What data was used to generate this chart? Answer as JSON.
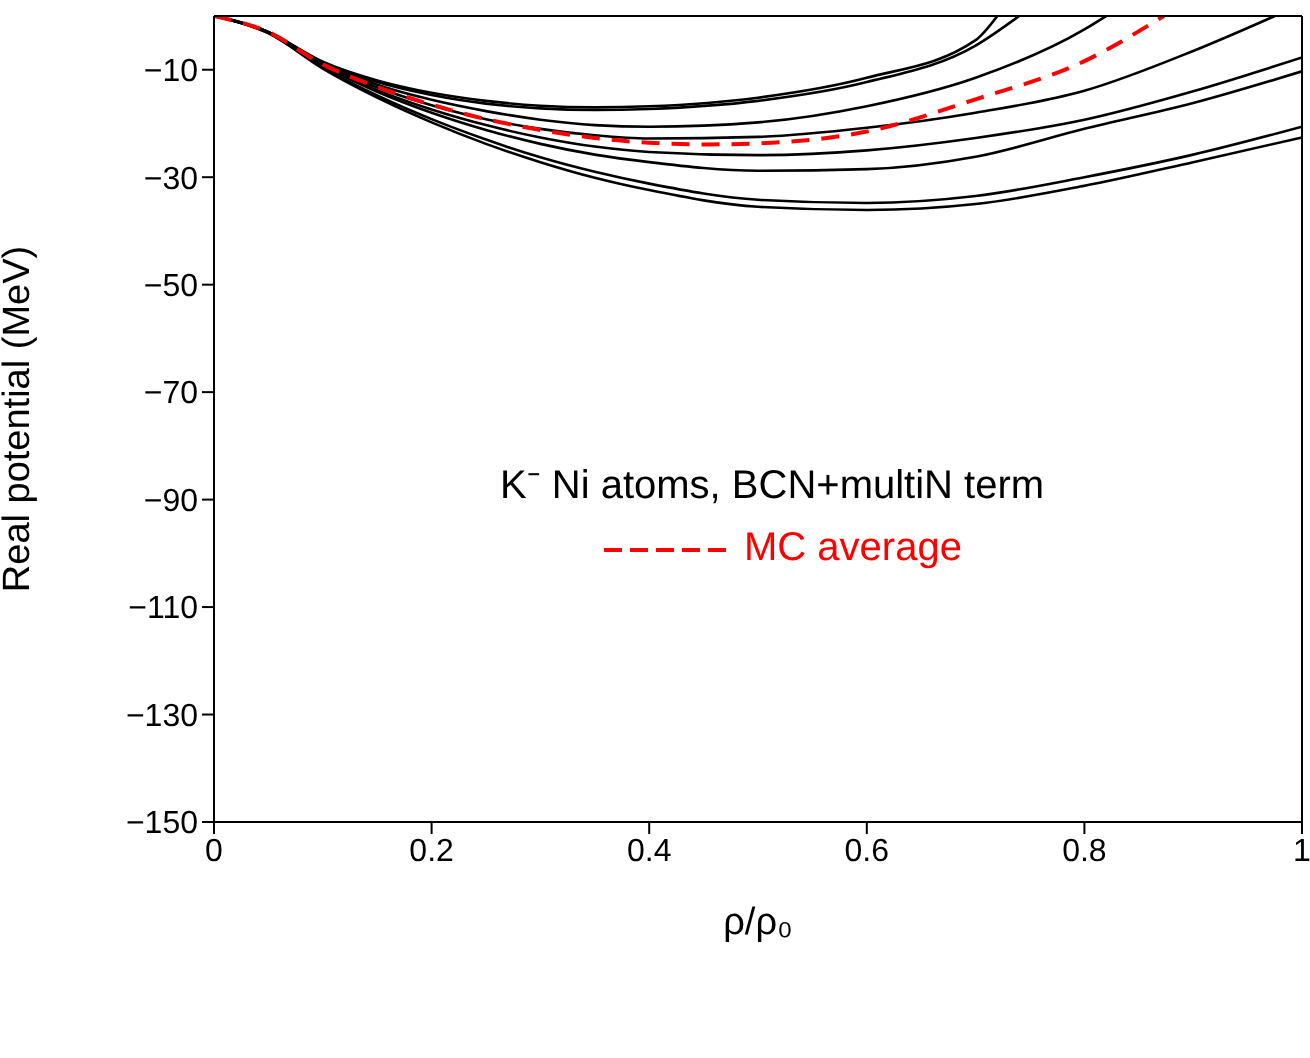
{
  "chart_data": {
    "type": "line",
    "xlabel": "ρ/ρ₀",
    "ylabel": "Real potential (MeV)",
    "legend_title": "K⁻ Ni atoms, BCN+multiN term",
    "legend": "right",
    "xlim": [
      0,
      1
    ],
    "xticks": [
      0,
      0.2,
      0.4,
      0.6,
      0.8,
      1
    ],
    "ylim": [
      -150,
      0
    ],
    "yticks": [
      -150,
      -130,
      -110,
      -90,
      -70,
      -50,
      -30,
      -10
    ],
    "marker": "none",
    "series": [
      {
        "color": "#000000",
        "line_style": "solid",
        "x": [
          0,
          0.05,
          0.1,
          0.15,
          0.2,
          0.25,
          0.3,
          0.35,
          0.4,
          0.5,
          0.6,
          0.7,
          0.72
        ],
        "values": [
          0,
          -3,
          -8.5,
          -12,
          -14.3,
          -15.8,
          -16.7,
          -17,
          -16.8,
          -15.2,
          -11.5,
          -4.5,
          0
        ]
      },
      {
        "color": "#000000",
        "line_style": "solid",
        "x": [
          0,
          0.05,
          0.1,
          0.15,
          0.2,
          0.25,
          0.3,
          0.35,
          0.4,
          0.5,
          0.6,
          0.7,
          0.74
        ],
        "values": [
          0,
          -3,
          -8.7,
          -12.3,
          -14.7,
          -16.3,
          -17.2,
          -17.5,
          -17.3,
          -15.8,
          -12.3,
          -5.5,
          0
        ]
      },
      {
        "color": "#000000",
        "line_style": "solid",
        "x": [
          0,
          0.05,
          0.1,
          0.15,
          0.2,
          0.25,
          0.3,
          0.35,
          0.4,
          0.5,
          0.6,
          0.7,
          0.8,
          0.82
        ],
        "values": [
          0,
          -3,
          -8.8,
          -12.8,
          -15.6,
          -17.7,
          -19.3,
          -20.3,
          -20.6,
          -19.8,
          -16.8,
          -11.5,
          -2.5,
          0
        ]
      },
      {
        "color": "#000000",
        "line_style": "solid",
        "x": [
          0,
          0.05,
          0.1,
          0.15,
          0.2,
          0.25,
          0.3,
          0.35,
          0.4,
          0.5,
          0.6,
          0.7,
          0.8,
          0.9,
          0.975
        ],
        "values": [
          0,
          -3,
          -9,
          -13.3,
          -16.6,
          -19.2,
          -21,
          -22.2,
          -22.8,
          -22.5,
          -20.8,
          -18,
          -13.9,
          -6.5,
          0
        ]
      },
      {
        "color": "#000000",
        "line_style": "solid",
        "x": [
          0,
          0.05,
          0.1,
          0.15,
          0.2,
          0.25,
          0.3,
          0.35,
          0.4,
          0.5,
          0.6,
          0.7,
          0.8,
          0.9,
          1
        ],
        "values": [
          0,
          -3,
          -9.2,
          -13.8,
          -17.4,
          -20.3,
          -22.6,
          -24.3,
          -25.3,
          -25.9,
          -25,
          -22.7,
          -19.3,
          -14,
          -7.7
        ]
      },
      {
        "color": "#000000",
        "line_style": "solid",
        "x": [
          0,
          0.05,
          0.1,
          0.15,
          0.2,
          0.25,
          0.3,
          0.35,
          0.4,
          0.5,
          0.6,
          0.7,
          0.8,
          0.9,
          1
        ],
        "values": [
          0,
          -3,
          -9.3,
          -14.1,
          -18,
          -21.2,
          -23.8,
          -25.8,
          -27.2,
          -28.8,
          -28.5,
          -26.2,
          -21,
          -16.2,
          -10.3
        ]
      },
      {
        "color": "#000000",
        "line_style": "solid",
        "x": [
          0,
          0.05,
          0.1,
          0.15,
          0.2,
          0.25,
          0.3,
          0.35,
          0.4,
          0.5,
          0.6,
          0.7,
          0.8,
          0.9,
          1
        ],
        "values": [
          0,
          -3.2,
          -9.6,
          -14.8,
          -19.2,
          -23,
          -26.3,
          -29,
          -31.2,
          -34.2,
          -34.8,
          -33.5,
          -30,
          -25.8,
          -20.6
        ]
      },
      {
        "color": "#000000",
        "line_style": "solid",
        "x": [
          0,
          0.05,
          0.1,
          0.15,
          0.2,
          0.25,
          0.3,
          0.35,
          0.4,
          0.5,
          0.6,
          0.7,
          0.8,
          0.9,
          1
        ],
        "values": [
          0,
          -3.2,
          -9.8,
          -15.2,
          -19.8,
          -23.8,
          -27.2,
          -30.1,
          -32.4,
          -35.5,
          -36.1,
          -35,
          -31.6,
          -27.2,
          -22.6
        ]
      },
      {
        "name": "MC average",
        "color": "#ff0000",
        "line_style": "dashed",
        "x": [
          0,
          0.05,
          0.1,
          0.15,
          0.2,
          0.25,
          0.3,
          0.35,
          0.4,
          0.45,
          0.5,
          0.6,
          0.7,
          0.8,
          0.873
        ],
        "values": [
          0,
          -3,
          -9,
          -13.2,
          -16.5,
          -19.2,
          -21.2,
          -22.7,
          -23.6,
          -23.9,
          -23.7,
          -21.5,
          -15.5,
          -8.4,
          0
        ]
      }
    ]
  }
}
